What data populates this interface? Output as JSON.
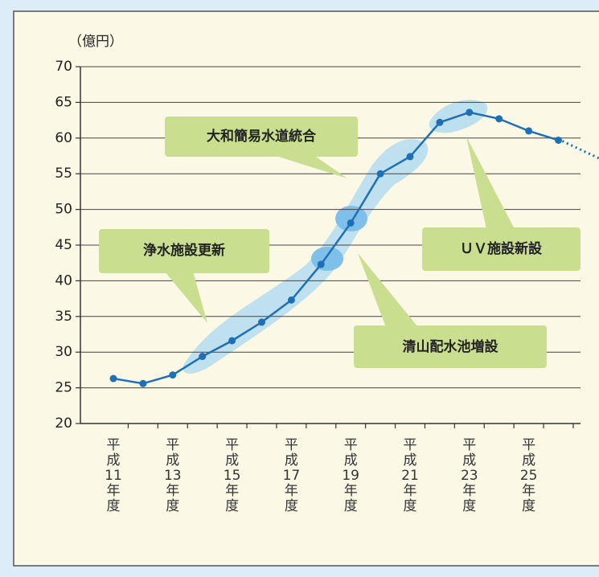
{
  "chart_data": {
    "type": "line",
    "unit_label": "（億円）",
    "categories": [
      "平成11年度",
      null,
      "平成13年度",
      null,
      "平成15年度",
      null,
      "平成17年度",
      null,
      "平成19年度",
      null,
      "平成21年度",
      null,
      "平成23年度",
      null,
      "平成25年度",
      null
    ],
    "values": [
      26.3,
      25.6,
      26.8,
      29.4,
      31.6,
      34.2,
      37.3,
      42.3,
      48.1,
      55.0,
      57.4,
      62.2,
      63.6,
      62.7,
      61.0,
      59.7
    ],
    "color": "#1f6fb5",
    "ylim": [
      20,
      70
    ],
    "yticks": [
      20,
      25,
      30,
      35,
      40,
      45,
      50,
      55,
      60,
      65,
      70
    ],
    "grid": true,
    "annotations": [
      "大和簡易水道統合",
      "浄水施設更新",
      "ＵＶ施設新設",
      "清山配水池増設"
    ]
  }
}
